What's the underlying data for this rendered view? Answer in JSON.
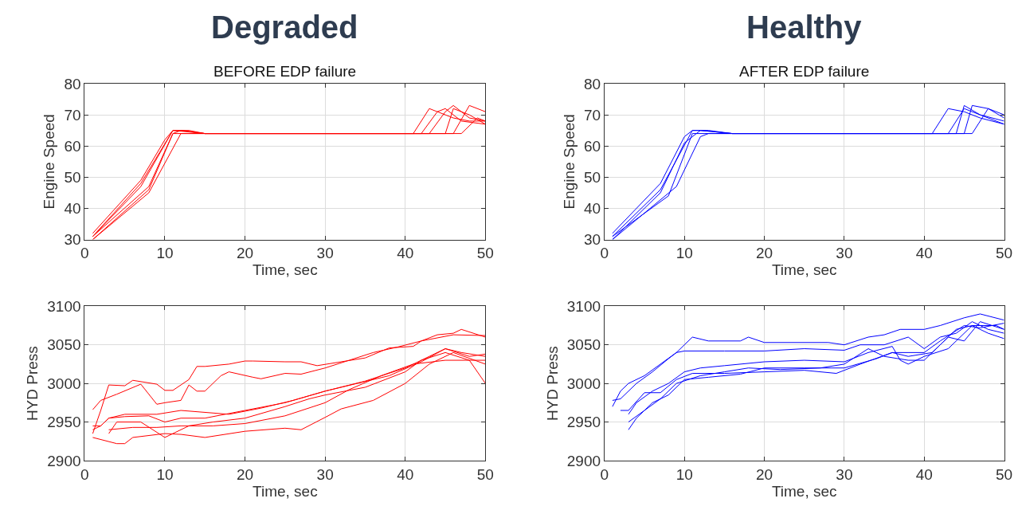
{
  "chart_data": [
    {
      "type": "line",
      "title": "Degraded",
      "subtitle": "BEFORE EDP failure",
      "xlabel": "Time, sec",
      "ylabel": "Engine Speed",
      "xlim": [
        0,
        50
      ],
      "xticks": [
        0,
        10,
        20,
        30,
        40,
        50
      ],
      "ylim": [
        30,
        80
      ],
      "yticks": [
        30,
        40,
        50,
        60,
        70,
        80
      ],
      "grid": true,
      "series": [
        {
          "color": "#ff0000",
          "x": [
            1,
            7,
            11,
            12,
            15,
            41,
            43,
            44,
            46,
            48,
            50
          ],
          "values": [
            31,
            48,
            65,
            65,
            64,
            64,
            72,
            71,
            69,
            68,
            68
          ]
        },
        {
          "color": "#ff0000",
          "x": [
            1,
            8,
            11,
            12,
            15,
            42,
            44,
            45,
            47,
            50
          ],
          "values": [
            30,
            46,
            64,
            65,
            64,
            64,
            71,
            72,
            68,
            67
          ]
        },
        {
          "color": "#ff0000",
          "x": [
            1,
            7,
            10,
            11,
            13,
            15,
            43,
            45,
            46,
            48,
            50
          ],
          "values": [
            32,
            49,
            62,
            65,
            65,
            64,
            64,
            71,
            73,
            69,
            68
          ]
        },
        {
          "color": "#ff0000",
          "x": [
            1,
            8,
            12,
            15,
            45,
            46,
            48,
            50
          ],
          "values": [
            30,
            45,
            64,
            64,
            64,
            72,
            70,
            67
          ]
        },
        {
          "color": "#ff0000",
          "x": [
            1,
            7,
            11,
            15,
            46,
            48,
            50
          ],
          "values": [
            31,
            47,
            65,
            64,
            64,
            73,
            71
          ]
        },
        {
          "color": "#ff0000",
          "x": [
            1,
            8,
            11,
            15,
            47,
            49,
            50
          ],
          "values": [
            31,
            47,
            64,
            64,
            64,
            69,
            68
          ]
        }
      ]
    },
    {
      "type": "line",
      "title": "Healthy",
      "subtitle": "AFTER EDP failure",
      "xlabel": "Time, sec",
      "ylabel": "Engine Speed",
      "xlim": [
        0,
        50
      ],
      "xticks": [
        0,
        10,
        20,
        30,
        40,
        50
      ],
      "ylim": [
        30,
        80
      ],
      "yticks": [
        30,
        40,
        50,
        60,
        70,
        80
      ],
      "grid": true,
      "series": [
        {
          "color": "#0000ff",
          "x": [
            1,
            7,
            10,
            11,
            13,
            16,
            41,
            43,
            45,
            47,
            50
          ],
          "values": [
            32,
            48,
            63,
            65,
            65,
            64,
            64,
            72,
            71,
            69,
            67
          ]
        },
        {
          "color": "#0000ff",
          "x": [
            1,
            9,
            12,
            13,
            16,
            43,
            45,
            47,
            50
          ],
          "values": [
            30,
            47,
            63,
            64,
            64,
            64,
            72,
            70,
            68
          ]
        },
        {
          "color": "#0000ff",
          "x": [
            1,
            7,
            11,
            12,
            16,
            44,
            45,
            47,
            50
          ],
          "values": [
            31,
            46,
            65,
            65,
            64,
            64,
            73,
            70,
            67
          ]
        },
        {
          "color": "#0000ff",
          "x": [
            1,
            8,
            11,
            16,
            45,
            46,
            48,
            50
          ],
          "values": [
            31,
            44,
            64,
            64,
            64,
            73,
            72,
            69
          ]
        },
        {
          "color": "#0000ff",
          "x": [
            1,
            7,
            10,
            12,
            16,
            46,
            48,
            50
          ],
          "values": [
            30,
            45,
            61,
            65,
            64,
            64,
            72,
            70
          ]
        }
      ]
    },
    {
      "type": "line",
      "xlabel": "Time, sec",
      "ylabel": "HYD Press",
      "xlim": [
        0,
        50
      ],
      "xticks": [
        0,
        10,
        20,
        30,
        40,
        50
      ],
      "ylim": [
        2900,
        3100
      ],
      "yticks": [
        2900,
        2950,
        3000,
        3050,
        3100
      ],
      "grid": true,
      "series": [
        {
          "color": "#ff0000",
          "x": [
            1,
            2,
            3,
            5,
            6,
            9,
            10,
            11,
            12,
            13,
            14,
            15,
            18,
            20,
            21,
            25,
            27,
            29,
            35,
            38,
            41,
            42,
            44,
            46,
            47,
            50
          ],
          "values": [
            2935,
            2965,
            2998,
            2997,
            3004,
            2999,
            2991,
            2991,
            2998,
            3005,
            3022,
            3022,
            3025,
            3029,
            3029,
            3028,
            3028,
            3023,
            3033,
            3046,
            3048,
            3055,
            3063,
            3065,
            3070,
            3060
          ]
        },
        {
          "color": "#ff0000",
          "x": [
            1,
            2,
            4,
            7,
            9,
            10,
            12,
            13,
            14,
            15,
            17,
            18,
            21,
            22,
            25,
            27,
            30,
            33,
            36,
            39,
            42,
            46,
            50
          ],
          "values": [
            2966,
            2978,
            2986,
            2999,
            2973,
            2975,
            2978,
            2998,
            2990,
            2990,
            3010,
            3015,
            3008,
            3006,
            3013,
            3012,
            3020,
            3030,
            3040,
            3047,
            3055,
            3063,
            3062
          ]
        },
        {
          "color": "#ff0000",
          "x": [
            1,
            2,
            3,
            5,
            8,
            10,
            12,
            15,
            20,
            25,
            30,
            35,
            40,
            43,
            45,
            47,
            50
          ],
          "values": [
            2940,
            2945,
            2955,
            2957,
            2958,
            2950,
            2955,
            2955,
            2965,
            2975,
            2990,
            3003,
            3020,
            3035,
            3045,
            3040,
            3035
          ]
        },
        {
          "color": "#ff0000",
          "x": [
            3,
            4,
            7,
            10,
            13,
            16,
            20,
            25,
            28,
            30,
            35,
            40,
            42,
            45,
            48,
            50
          ],
          "values": [
            2935,
            2950,
            2950,
            2930,
            2945,
            2950,
            2955,
            2970,
            2980,
            2985,
            2995,
            3015,
            3030,
            3040,
            3030,
            3000
          ]
        },
        {
          "color": "#ff0000",
          "x": [
            1,
            4,
            5,
            6,
            10,
            12,
            15,
            20,
            25,
            27,
            30,
            32,
            36,
            40,
            43,
            46,
            50
          ],
          "values": [
            2930,
            2922,
            2922,
            2930,
            2935,
            2934,
            2930,
            2938,
            2942,
            2940,
            2956,
            2967,
            2978,
            3000,
            3025,
            3040,
            3025
          ]
        },
        {
          "color": "#ff0000",
          "x": [
            1,
            2,
            3,
            5,
            9,
            12,
            18,
            22,
            26,
            30,
            34,
            38,
            42,
            45,
            48,
            50
          ],
          "values": [
            2945,
            2945,
            2955,
            2960,
            2960,
            2965,
            2960,
            2968,
            2978,
            2990,
            3000,
            3010,
            3028,
            3045,
            3035,
            3038
          ]
        },
        {
          "color": "#ff0000",
          "x": [
            3,
            6,
            9,
            12,
            16,
            20,
            25,
            30,
            33,
            37,
            41,
            45,
            50
          ],
          "values": [
            2940,
            2943,
            2943,
            2945,
            2945,
            2948,
            2958,
            2975,
            2992,
            3010,
            3025,
            3030,
            3030
          ]
        }
      ]
    },
    {
      "type": "line",
      "xlabel": "Time, sec",
      "ylabel": "HYD Press",
      "xlim": [
        0,
        50
      ],
      "xticks": [
        0,
        10,
        20,
        30,
        40,
        50
      ],
      "ylim": [
        2900,
        3100
      ],
      "yticks": [
        2900,
        2950,
        3000,
        3050,
        3100
      ],
      "grid": true,
      "series": [
        {
          "color": "#0000ff",
          "x": [
            1,
            2,
            3,
            5,
            7,
            9,
            10,
            11,
            13,
            17,
            18,
            20,
            28,
            30,
            33,
            35,
            37,
            40,
            42,
            45,
            47,
            50
          ],
          "values": [
            2970,
            2990,
            3000,
            3010,
            3025,
            3040,
            3050,
            3060,
            3055,
            3055,
            3060,
            3053,
            3053,
            3050,
            3060,
            3063,
            3070,
            3070,
            3075,
            3085,
            3090,
            3082
          ]
        },
        {
          "color": "#0000ff",
          "x": [
            1,
            2,
            4,
            6,
            8,
            9,
            10,
            15,
            20,
            25,
            30,
            32,
            35,
            38,
            40,
            42,
            44,
            46,
            48,
            50
          ],
          "values": [
            2978,
            2980,
            3000,
            3015,
            3032,
            3040,
            3042,
            3042,
            3042,
            3045,
            3043,
            3050,
            3050,
            3060,
            3045,
            3060,
            3065,
            3080,
            3070,
            3065
          ]
        },
        {
          "color": "#0000ff",
          "x": [
            3,
            4,
            6,
            8,
            10,
            12,
            15,
            20,
            25,
            30,
            33,
            36,
            37,
            38,
            40,
            43,
            46,
            48,
            50
          ],
          "values": [
            2960,
            2975,
            2990,
            3000,
            3015,
            3020,
            3023,
            3028,
            3030,
            3028,
            3040,
            3048,
            3030,
            3025,
            3035,
            3045,
            3075,
            3065,
            3058
          ]
        },
        {
          "color": "#0000ff",
          "x": [
            3,
            4,
            6,
            8,
            10,
            13,
            17,
            20,
            25,
            30,
            34,
            36,
            38,
            41,
            43,
            45,
            47,
            50
          ],
          "values": [
            2940,
            2955,
            2975,
            2985,
            3005,
            3008,
            3012,
            3020,
            3020,
            3020,
            3032,
            3040,
            3035,
            3040,
            3060,
            3055,
            3080,
            3070
          ]
        },
        {
          "color": "#0000ff",
          "x": [
            3,
            5,
            7,
            9,
            12,
            15,
            18,
            22,
            27,
            30,
            33,
            35,
            38,
            40,
            42,
            44,
            46,
            49,
            50
          ],
          "values": [
            2950,
            2965,
            2980,
            3000,
            3010,
            3015,
            3020,
            3018,
            3020,
            3025,
            3045,
            3035,
            3030,
            3030,
            3050,
            3070,
            3075,
            3075,
            3070
          ]
        },
        {
          "color": "#0000ff",
          "x": [
            2,
            3,
            5,
            7,
            9,
            11,
            15,
            20,
            25,
            29,
            32,
            36,
            40,
            42,
            45,
            47,
            50
          ],
          "values": [
            2965,
            2965,
            2988,
            2988,
            3005,
            3013,
            3013,
            3015,
            3017,
            3013,
            3025,
            3040,
            3040,
            3055,
            3075,
            3072,
            3078
          ]
        }
      ]
    }
  ]
}
